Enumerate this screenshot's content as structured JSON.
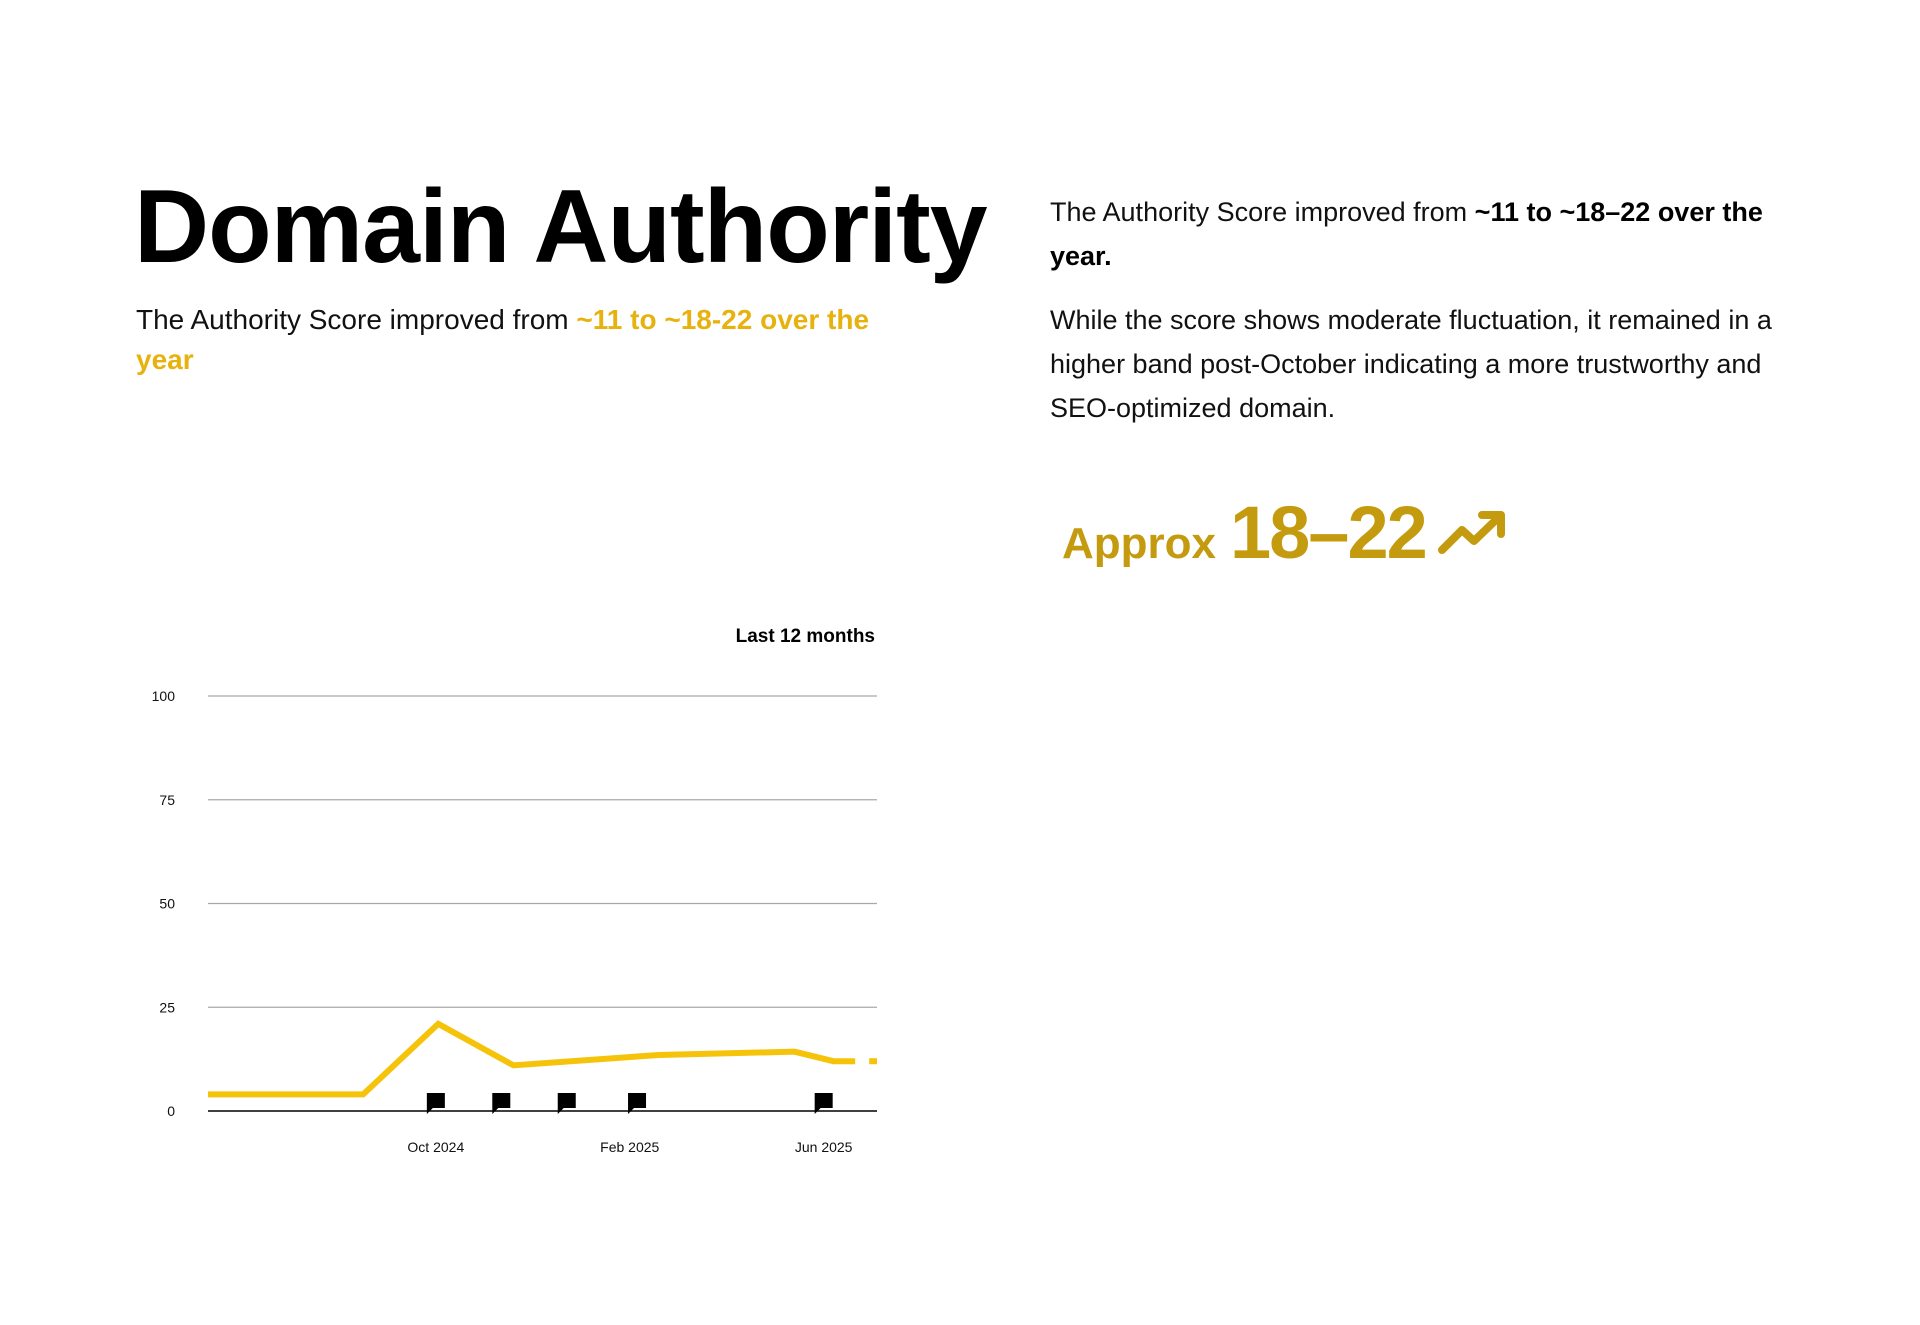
{
  "page": {
    "title": "Domain Authority",
    "subtitle_prefix": "The Authority Score improved from ",
    "subtitle_highlight": "~11 to ~18-22 over the year",
    "right_p1_prefix": "The Authority Score improved from ",
    "right_p1_bold": "~11 to ~18–22 over the year.",
    "right_p2": "While the score shows moderate fluctuation, it remained in a higher band post-October indicating a more trustworthy and SEO-optimized domain.",
    "approx_word": "Approx",
    "approx_value": "18–22",
    "approx_icon": "trending-up-icon",
    "period_label": "Last 12 months"
  },
  "colors": {
    "line": "#f5c30a",
    "highlight": "#e7b20e",
    "approx": "#c49a0e",
    "grid": "#a9a9a9",
    "marker": "#000000"
  },
  "chart_data": {
    "type": "line",
    "title": "",
    "xlabel": "",
    "ylabel": "",
    "ylim": [
      0,
      100
    ],
    "y_ticks": [
      0,
      25,
      50,
      75,
      100
    ],
    "x_tick_labels": [
      {
        "label": "Oct 2024",
        "month": 3
      },
      {
        "label": "Feb 2025",
        "month": 7
      },
      {
        "label": "Jun 2025",
        "month": 11
      }
    ],
    "xlim": [
      -1.7,
      12.1
    ],
    "grid": true,
    "series": [
      {
        "name": "",
        "points": [
          {
            "x": -1.7,
            "y": 4
          },
          {
            "x": 1.5,
            "y": 4
          },
          {
            "x": 3.05,
            "y": 21
          },
          {
            "x": 4.6,
            "y": 11
          },
          {
            "x": 7.6,
            "y": 13.5
          },
          {
            "x": 10.4,
            "y": 14.3
          },
          {
            "x": 11.2,
            "y": 12
          },
          {
            "x": 11.65,
            "y": 12
          }
        ],
        "projection": [
          {
            "x": 11.65,
            "y": 12
          },
          {
            "x": 12.1,
            "y": 12
          }
        ]
      }
    ],
    "markers_x": [
      3,
      4.35,
      5.7,
      7.15,
      11
    ]
  }
}
